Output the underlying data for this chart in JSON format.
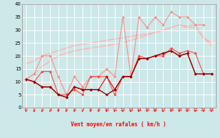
{
  "xlabel": "Vent moyen/en rafales ( km/h )",
  "bg_color": "#cce8e8",
  "grid_color": "#ffffff",
  "x_values": [
    0,
    1,
    2,
    3,
    4,
    5,
    6,
    7,
    8,
    9,
    10,
    11,
    12,
    13,
    14,
    15,
    16,
    17,
    18,
    19,
    20,
    21,
    22,
    23
  ],
  "ylim": [
    0,
    40
  ],
  "xlim": [
    -0.5,
    23.5
  ],
  "smooth_upper1": [
    17,
    18,
    20,
    21,
    22,
    23,
    24,
    24.5,
    25,
    25.5,
    26,
    26.5,
    27,
    27.5,
    28,
    28.5,
    29,
    30,
    31,
    32,
    31,
    31,
    27,
    24
  ],
  "smooth_upper1_color": "#ffb0b0",
  "smooth_upper2": [
    11,
    13,
    16,
    18,
    20,
    21,
    22,
    22.5,
    23,
    23.5,
    24,
    24.5,
    25,
    26,
    27,
    28,
    29,
    30,
    31,
    32,
    31.5,
    32,
    27,
    25
  ],
  "smooth_upper2_color": "#ffb0b0",
  "jagged_upper": [
    11,
    13,
    20,
    20,
    12,
    5,
    12,
    8,
    12,
    12,
    15,
    12,
    35,
    12,
    35,
    31,
    35,
    32,
    37,
    35,
    35,
    32,
    32,
    null
  ],
  "jagged_upper_color": "#ff8888",
  "jagged_mid": [
    11,
    10,
    14,
    14,
    5,
    5,
    7,
    5,
    12,
    12,
    12,
    5,
    12,
    12,
    20,
    19,
    20,
    20,
    23,
    21,
    22,
    21,
    13,
    13
  ],
  "jagged_mid_color": "#ff4444",
  "jagged_lower": [
    11,
    10,
    8,
    8,
    5,
    4,
    8,
    7,
    7,
    7,
    12,
    7,
    12,
    12,
    19,
    19,
    20,
    21,
    22,
    20,
    21,
    13,
    13,
    13
  ],
  "jagged_lower_color": "#dd0000",
  "jagged_bottom": [
    11,
    10,
    8,
    8,
    5,
    4,
    8,
    7,
    7,
    7,
    5,
    7,
    12,
    12,
    19,
    19,
    20,
    21,
    22,
    20,
    21,
    13,
    13,
    13
  ],
  "jagged_bottom_color": "#990000",
  "yticks": [
    0,
    5,
    10,
    15,
    20,
    25,
    30,
    35,
    40
  ],
  "ytick_labels": [
    "0",
    "5",
    "10",
    "15",
    "20",
    "25",
    "30",
    "35",
    "40"
  ],
  "xtick_labels": [
    "0",
    "1",
    "2",
    "3",
    "4",
    "5",
    "6",
    "7",
    "8",
    "9",
    "10",
    "11",
    "12",
    "13",
    "14",
    "15",
    "16",
    "17",
    "18",
    "19",
    "20",
    "21",
    "22",
    "23"
  ]
}
